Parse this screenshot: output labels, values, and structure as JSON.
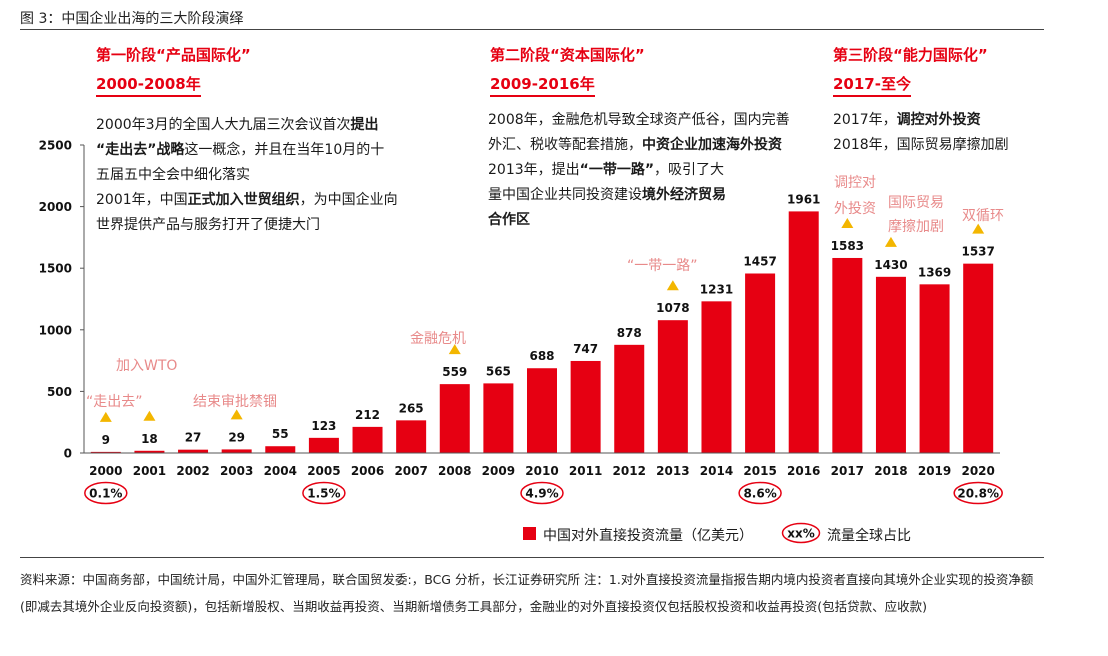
{
  "figure_title": "图 3：中国企业出海的三大阶段演绎",
  "stages": [
    {
      "title": "第一阶段“产品国际化”",
      "period": "2000-2008年",
      "lines": [
        [
          {
            "t": "2000年3月的全国人大九届三次会议首次",
            "b": false
          },
          {
            "t": "提出",
            "b": true
          }
        ],
        [
          {
            "t": "“走出去”战略",
            "b": true
          },
          {
            "t": "这一概念，并且在当年10月的十",
            "b": false
          }
        ],
        [
          {
            "t": "五届五中全会中细化落实",
            "b": false
          }
        ],
        [
          {
            "t": "2001年，中国",
            "b": false
          },
          {
            "t": "正式加入世贸组织",
            "b": true
          },
          {
            "t": "，为中国企业向",
            "b": false
          }
        ],
        [
          {
            "t": "世界提供产品与服务打开了便捷大门",
            "b": false
          }
        ]
      ]
    },
    {
      "title": "第二阶段“资本国际化”",
      "period": "2009-2016年",
      "lines": [
        [
          {
            "t": "2008年，金融危机导致全球资产低谷，国内完善",
            "b": false
          }
        ],
        [
          {
            "t": "外汇、税收等配套措施，",
            "b": false
          },
          {
            "t": "中资企业加速海外投资",
            "b": true
          }
        ],
        [
          {
            "t": "2013年，提出",
            "b": false
          },
          {
            "t": "“一带一路”",
            "b": true
          },
          {
            "t": "，吸引了大",
            "b": false
          }
        ],
        [
          {
            "t": "量中国企业共同投资建设",
            "b": false
          },
          {
            "t": "境外经济贸易",
            "b": true
          }
        ],
        [
          {
            "t": "合作区",
            "b": true
          }
        ]
      ]
    },
    {
      "title": "第三阶段“能力国际化”",
      "period": "2017-至今",
      "lines": [
        [
          {
            "t": "2017年，",
            "b": false
          },
          {
            "t": "调控对外投资",
            "b": true
          }
        ],
        [
          {
            "t": "2018年，国际贸易摩擦加剧",
            "b": false
          }
        ]
      ]
    }
  ],
  "annotations": [
    "“走出去”",
    "加入WTO",
    "结束审批禁锢",
    "金融危机",
    "“一带一路”",
    "调控对",
    "外投资",
    "国际贸易",
    "摩擦加剧",
    "双循环"
  ],
  "chart_data": {
    "type": "bar",
    "categories": [
      "2000",
      "2001",
      "2002",
      "2003",
      "2004",
      "2005",
      "2006",
      "2007",
      "2008",
      "2009",
      "2010",
      "2011",
      "2012",
      "2013",
      "2014",
      "2015",
      "2016",
      "2017",
      "2018",
      "2019",
      "2020"
    ],
    "series": [
      {
        "name": "中国对外直接投资流量（亿美元）",
        "values": [
          9,
          18,
          27,
          29,
          55,
          123,
          212,
          265,
          559,
          565,
          688,
          747,
          878,
          1078,
          1231,
          1457,
          1961,
          1583,
          1430,
          1369,
          1537
        ],
        "color": "#e60012"
      }
    ],
    "global_share_labels": [
      {
        "category": "2000",
        "label": "0.1%"
      },
      {
        "category": "2005",
        "label": "1.5%"
      },
      {
        "category": "2010",
        "label": "4.9%"
      },
      {
        "category": "2015",
        "label": "8.6%"
      },
      {
        "category": "2020",
        "label": "20.8%"
      }
    ],
    "marked_years": [
      "2000",
      "2001",
      "2003",
      "2008",
      "2013",
      "2017",
      "2018",
      "2020"
    ],
    "ylim": [
      0,
      2500
    ],
    "yticks": [
      "0",
      "500",
      "1000",
      "1500",
      "2000",
      "2500"
    ],
    "legend": {
      "bar_label": "中国对外直接投资流量（亿美元）",
      "share_symbol": "xx%",
      "share_label": "流量全球占比"
    },
    "grid": false
  },
  "source_notes": "资料来源：中国商务部，中国统计局，中国外汇管理局，联合国贸发委:，BCG 分析，长江证券研究所 注：1.对外直接投资流量指报告期内境内投资者直接向其境外企业实现的投资净额(即减去其境外企业反向投资额)，包括新增股权、当期收益再投资、当期新增债务工具部分，金融业的对外直接投资仅包括股权投资和收益再投资(包括贷款、应收款)",
  "colors": {
    "accent": "#e60012",
    "annotation": "#e88a8a",
    "marker": "#f3b600"
  }
}
